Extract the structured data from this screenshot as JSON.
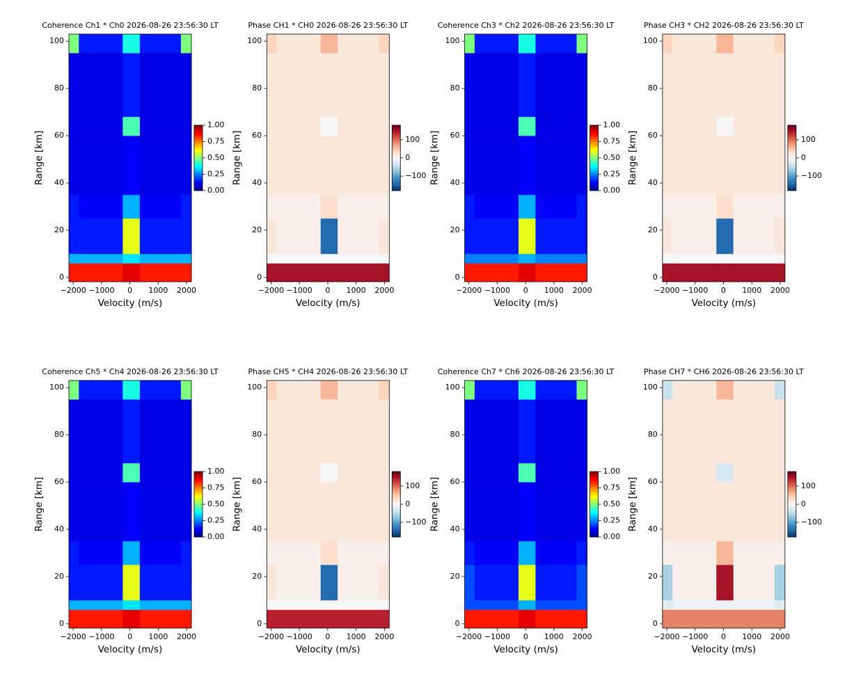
{
  "chart_data": [
    {
      "type": "heatmap",
      "title": "Coherence Ch1 * Ch0 2026-08-26 23:56:30 LT",
      "xlabel": "Velocity (m/s)",
      "ylabel": "Range [km]",
      "colormap": "jet",
      "xlim": [
        -2150,
        2170
      ],
      "ylim": [
        -1.8,
        103
      ],
      "xticks": [
        {
          "value": -2000,
          "label": "−2000"
        },
        {
          "value": -1000,
          "label": "−1000"
        },
        0,
        1000,
        2000
      ],
      "yticks": [
        0,
        20,
        40,
        60,
        80,
        100
      ],
      "x_edges": [
        -2150,
        -1800,
        -250,
        350,
        1800,
        2170
      ],
      "y_edges": [
        -1.8,
        6,
        10,
        25,
        35,
        60,
        68,
        95,
        103
      ],
      "z": [
        [
          0.85,
          0.85,
          0.9,
          0.85,
          0.85
        ],
        [
          0.3,
          0.3,
          0.35,
          0.3,
          0.3
        ],
        [
          0.15,
          0.15,
          0.6,
          0.15,
          0.15
        ],
        [
          0.15,
          0.12,
          0.3,
          0.12,
          0.15
        ],
        [
          0.1,
          0.1,
          0.12,
          0.1,
          0.1
        ],
        [
          0.1,
          0.1,
          0.45,
          0.1,
          0.1
        ],
        [
          0.1,
          0.1,
          0.15,
          0.1,
          0.1
        ],
        [
          0.5,
          0.15,
          0.4,
          0.15,
          0.5
        ]
      ],
      "zlim": [
        0,
        1
      ],
      "zticks": [
        {
          "value": 0,
          "label": "0.00"
        },
        {
          "value": 0.25,
          "label": "0.25"
        },
        {
          "value": 0.5,
          "label": "0.50"
        },
        {
          "value": 0.75,
          "label": "0.75"
        },
        {
          "value": 1,
          "label": "1.00"
        }
      ]
    },
    {
      "type": "heatmap",
      "title": "Phase CH1 * CH0 2026-08-26 23:56:30 LT",
      "xlabel": "Velocity (m/s)",
      "ylabel": "Range [km]",
      "colormap": "RdBu_r",
      "xlim": [
        -2150,
        2170
      ],
      "ylim": [
        -1.8,
        103
      ],
      "xticks": [
        {
          "value": -2000,
          "label": "−2000"
        },
        {
          "value": -1000,
          "label": "−1000"
        },
        0,
        1000,
        2000
      ],
      "yticks": [
        0,
        20,
        40,
        60,
        80,
        100
      ],
      "x_edges": [
        -2150,
        -1800,
        -250,
        350,
        1800,
        2170
      ],
      "y_edges": [
        -1.8,
        6,
        10,
        25,
        35,
        60,
        68,
        95,
        103
      ],
      "z": [
        [
          150,
          150,
          150,
          150,
          150
        ],
        [
          0,
          0,
          0,
          0,
          0
        ],
        [
          20,
          10,
          -140,
          10,
          20
        ],
        [
          10,
          10,
          30,
          10,
          10
        ],
        [
          20,
          20,
          20,
          20,
          20
        ],
        [
          20,
          20,
          0,
          20,
          20
        ],
        [
          20,
          20,
          20,
          20,
          20
        ],
        [
          40,
          20,
          60,
          20,
          40
        ]
      ],
      "zlim": [
        -180,
        180
      ],
      "zticks": [
        {
          "value": -100,
          "label": "−100"
        },
        0,
        100
      ]
    },
    {
      "type": "heatmap",
      "title": "Coherence Ch3 * Ch2 2026-08-26 23:56:30 LT",
      "xlabel": "Velocity (m/s)",
      "ylabel": "Range [km]",
      "colormap": "jet",
      "xlim": [
        -2150,
        2170
      ],
      "ylim": [
        -1.8,
        103
      ],
      "xticks": [
        {
          "value": -2000,
          "label": "−2000"
        },
        {
          "value": -1000,
          "label": "−1000"
        },
        0,
        1000,
        2000
      ],
      "yticks": [
        0,
        20,
        40,
        60,
        80,
        100
      ],
      "x_edges": [
        -2150,
        -1800,
        -250,
        350,
        1800,
        2170
      ],
      "y_edges": [
        -1.8,
        6,
        10,
        25,
        35,
        60,
        68,
        95,
        103
      ],
      "z": [
        [
          0.85,
          0.85,
          0.9,
          0.85,
          0.85
        ],
        [
          0.25,
          0.25,
          0.3,
          0.25,
          0.25
        ],
        [
          0.15,
          0.15,
          0.6,
          0.15,
          0.15
        ],
        [
          0.15,
          0.12,
          0.3,
          0.12,
          0.15
        ],
        [
          0.1,
          0.1,
          0.12,
          0.1,
          0.1
        ],
        [
          0.1,
          0.1,
          0.45,
          0.1,
          0.1
        ],
        [
          0.1,
          0.1,
          0.15,
          0.1,
          0.1
        ],
        [
          0.5,
          0.15,
          0.4,
          0.15,
          0.5
        ]
      ],
      "zlim": [
        0,
        1
      ],
      "zticks": [
        {
          "value": 0,
          "label": "0.00"
        },
        {
          "value": 0.25,
          "label": "0.25"
        },
        {
          "value": 0.5,
          "label": "0.50"
        },
        {
          "value": 0.75,
          "label": "0.75"
        },
        {
          "value": 1,
          "label": "1.00"
        }
      ]
    },
    {
      "type": "heatmap",
      "title": "Phase CH3 * CH2 2026-08-26 23:56:30 LT",
      "xlabel": "Velocity (m/s)",
      "ylabel": "Range [km]",
      "colormap": "RdBu_r",
      "xlim": [
        -2150,
        2170
      ],
      "ylim": [
        -1.8,
        103
      ],
      "xticks": [
        {
          "value": -2000,
          "label": "−2000"
        },
        {
          "value": -1000,
          "label": "−1000"
        },
        0,
        1000,
        2000
      ],
      "yticks": [
        0,
        20,
        40,
        60,
        80,
        100
      ],
      "x_edges": [
        -2150,
        -1800,
        -250,
        350,
        1800,
        2170
      ],
      "y_edges": [
        -1.8,
        6,
        10,
        25,
        35,
        60,
        68,
        95,
        103
      ],
      "z": [
        [
          150,
          150,
          150,
          150,
          150
        ],
        [
          0,
          0,
          0,
          0,
          0
        ],
        [
          20,
          10,
          -140,
          10,
          20
        ],
        [
          10,
          10,
          30,
          10,
          10
        ],
        [
          20,
          20,
          20,
          20,
          20
        ],
        [
          20,
          20,
          0,
          20,
          20
        ],
        [
          20,
          20,
          20,
          20,
          20
        ],
        [
          40,
          20,
          60,
          20,
          40
        ]
      ],
      "zlim": [
        -180,
        180
      ],
      "zticks": [
        {
          "value": -100,
          "label": "−100"
        },
        0,
        100
      ]
    },
    {
      "type": "heatmap",
      "title": "Coherence Ch5 * Ch4 2026-08-26 23:56:30 LT",
      "xlabel": "Velocity (m/s)",
      "ylabel": "Range [km]",
      "colormap": "jet",
      "xlim": [
        -2150,
        2170
      ],
      "ylim": [
        -1.8,
        103
      ],
      "xticks": [
        {
          "value": -2000,
          "label": "−2000"
        },
        {
          "value": -1000,
          "label": "−1000"
        },
        0,
        1000,
        2000
      ],
      "yticks": [
        0,
        20,
        40,
        60,
        80,
        100
      ],
      "x_edges": [
        -2150,
        -1800,
        -250,
        350,
        1800,
        2170
      ],
      "y_edges": [
        -1.8,
        6,
        10,
        25,
        35,
        60,
        68,
        95,
        103
      ],
      "z": [
        [
          0.85,
          0.85,
          0.9,
          0.85,
          0.85
        ],
        [
          0.3,
          0.3,
          0.35,
          0.3,
          0.3
        ],
        [
          0.15,
          0.15,
          0.6,
          0.15,
          0.15
        ],
        [
          0.15,
          0.12,
          0.3,
          0.12,
          0.15
        ],
        [
          0.1,
          0.1,
          0.12,
          0.1,
          0.1
        ],
        [
          0.1,
          0.1,
          0.45,
          0.1,
          0.1
        ],
        [
          0.1,
          0.1,
          0.15,
          0.1,
          0.1
        ],
        [
          0.5,
          0.15,
          0.4,
          0.15,
          0.5
        ]
      ],
      "zlim": [
        0,
        1
      ],
      "zticks": [
        {
          "value": 0,
          "label": "0.00"
        },
        {
          "value": 0.25,
          "label": "0.25"
        },
        {
          "value": 0.5,
          "label": "0.50"
        },
        {
          "value": 0.75,
          "label": "0.75"
        },
        {
          "value": 1,
          "label": "1.00"
        }
      ]
    },
    {
      "type": "heatmap",
      "title": "Phase CH5 * CH4 2026-08-26 23:56:30 LT",
      "xlabel": "Velocity (m/s)",
      "ylabel": "Range [km]",
      "colormap": "RdBu_r",
      "xlim": [
        -2150,
        2170
      ],
      "ylim": [
        -1.8,
        103
      ],
      "xticks": [
        {
          "value": -2000,
          "label": "−2000"
        },
        {
          "value": -1000,
          "label": "−1000"
        },
        0,
        1000,
        2000
      ],
      "yticks": [
        0,
        20,
        40,
        60,
        80,
        100
      ],
      "x_edges": [
        -2150,
        -1800,
        -250,
        350,
        1800,
        2170
      ],
      "y_edges": [
        -1.8,
        6,
        10,
        25,
        35,
        60,
        68,
        95,
        103
      ],
      "z": [
        [
          140,
          140,
          140,
          140,
          140
        ],
        [
          0,
          0,
          0,
          0,
          0
        ],
        [
          20,
          10,
          -140,
          10,
          20
        ],
        [
          10,
          10,
          30,
          10,
          10
        ],
        [
          20,
          20,
          20,
          20,
          20
        ],
        [
          20,
          20,
          0,
          20,
          20
        ],
        [
          20,
          20,
          20,
          20,
          20
        ],
        [
          40,
          20,
          60,
          20,
          40
        ]
      ],
      "zlim": [
        -180,
        180
      ],
      "zticks": [
        {
          "value": -100,
          "label": "−100"
        },
        0,
        100
      ]
    },
    {
      "type": "heatmap",
      "title": "Coherence Ch7 * Ch6 2026-08-26 23:56:30 LT",
      "xlabel": "Velocity (m/s)",
      "ylabel": "Range [km]",
      "colormap": "jet",
      "xlim": [
        -2150,
        2170
      ],
      "ylim": [
        -1.8,
        103
      ],
      "xticks": [
        {
          "value": -2000,
          "label": "−2000"
        },
        {
          "value": -1000,
          "label": "−1000"
        },
        0,
        1000,
        2000
      ],
      "yticks": [
        0,
        20,
        40,
        60,
        80,
        100
      ],
      "x_edges": [
        -2150,
        -1800,
        -250,
        350,
        1800,
        2170
      ],
      "y_edges": [
        -1.8,
        6,
        10,
        25,
        35,
        60,
        68,
        95,
        103
      ],
      "z": [
        [
          0.85,
          0.85,
          0.9,
          0.85,
          0.85
        ],
        [
          0.2,
          0.2,
          0.3,
          0.2,
          0.2
        ],
        [
          0.2,
          0.15,
          0.6,
          0.15,
          0.2
        ],
        [
          0.15,
          0.12,
          0.3,
          0.12,
          0.15
        ],
        [
          0.1,
          0.1,
          0.12,
          0.1,
          0.1
        ],
        [
          0.1,
          0.1,
          0.45,
          0.1,
          0.1
        ],
        [
          0.1,
          0.1,
          0.15,
          0.1,
          0.1
        ],
        [
          0.5,
          0.15,
          0.4,
          0.15,
          0.5
        ]
      ],
      "zlim": [
        0,
        1
      ],
      "zticks": [
        {
          "value": 0,
          "label": "0.00"
        },
        {
          "value": 0.25,
          "label": "0.25"
        },
        {
          "value": 0.5,
          "label": "0.50"
        },
        {
          "value": 0.75,
          "label": "0.75"
        },
        {
          "value": 1,
          "label": "1.00"
        }
      ]
    },
    {
      "type": "heatmap",
      "title": "Phase CH7 * CH6 2026-08-26 23:56:30 LT",
      "xlabel": "Velocity (m/s)",
      "ylabel": "Range [km]",
      "colormap": "RdBu_r",
      "xlim": [
        -2150,
        2170
      ],
      "ylim": [
        -1.8,
        103
      ],
      "xticks": [
        {
          "value": -2000,
          "label": "−2000"
        },
        {
          "value": -1000,
          "label": "−1000"
        },
        0,
        1000,
        2000
      ],
      "yticks": [
        0,
        20,
        40,
        60,
        80,
        100
      ],
      "x_edges": [
        -2150,
        -1800,
        -250,
        350,
        1800,
        2170
      ],
      "y_edges": [
        -1.8,
        6,
        10,
        25,
        35,
        60,
        68,
        95,
        103
      ],
      "z": [
        [
          90,
          90,
          90,
          90,
          90
        ],
        [
          -20,
          -10,
          -10,
          -10,
          -20
        ],
        [
          -60,
          10,
          150,
          10,
          -60
        ],
        [
          10,
          10,
          60,
          10,
          10
        ],
        [
          20,
          20,
          20,
          20,
          20
        ],
        [
          20,
          20,
          -30,
          20,
          20
        ],
        [
          20,
          20,
          20,
          20,
          20
        ],
        [
          -40,
          20,
          60,
          20,
          -40
        ]
      ],
      "zlim": [
        -180,
        180
      ],
      "zticks": [
        {
          "value": -100,
          "label": "−100"
        },
        0,
        100
      ]
    }
  ]
}
